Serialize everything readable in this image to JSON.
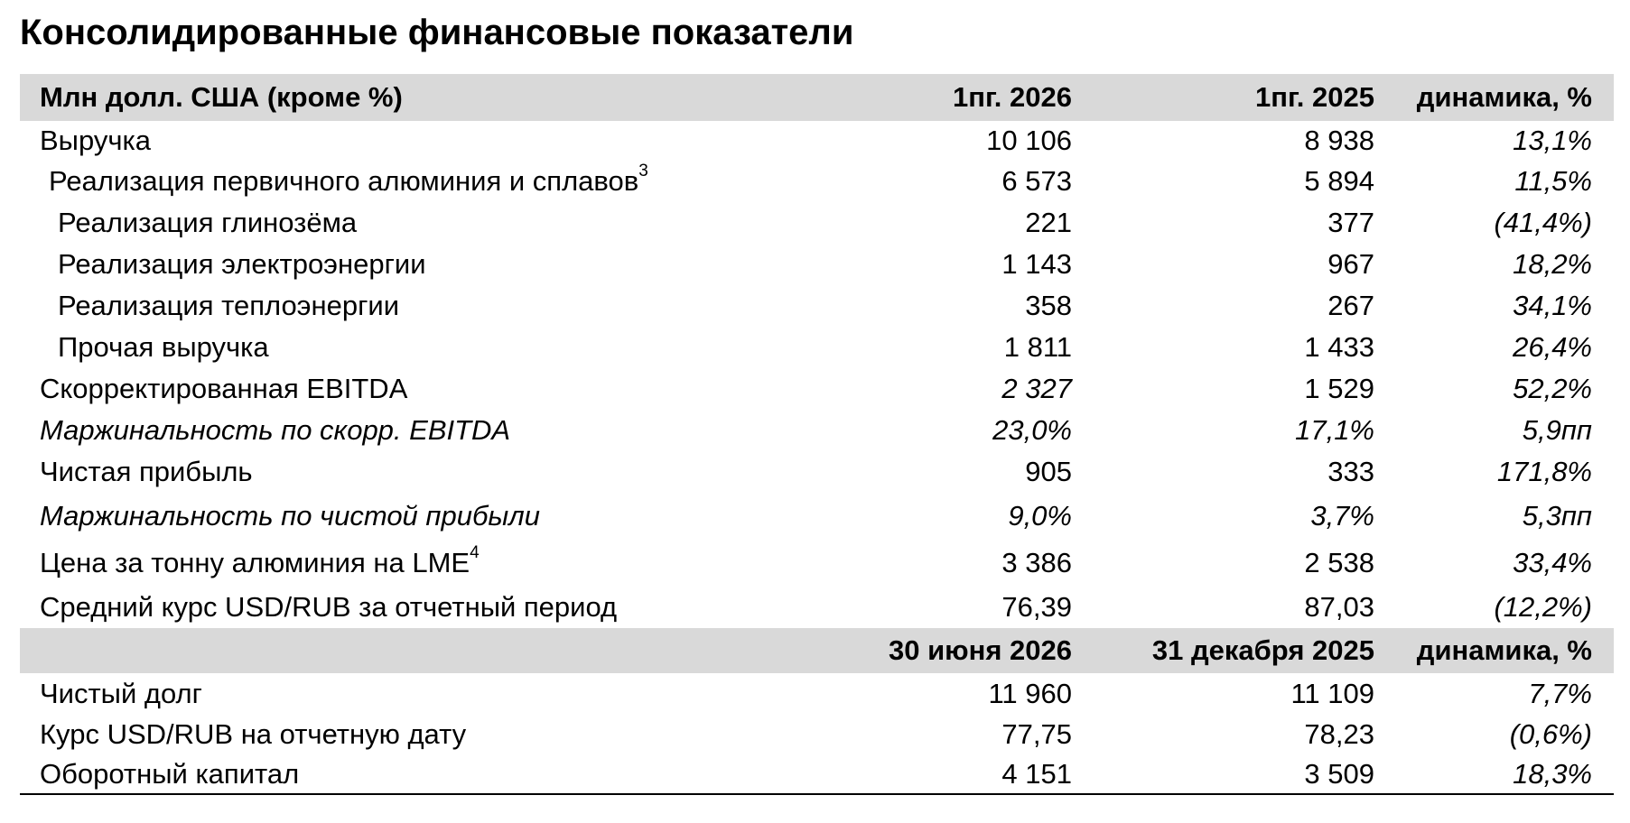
{
  "title": "Консолидированные финансовые показатели",
  "header1": {
    "label": "Млн долл. США (кроме %)",
    "col_a": "1пг. 2026",
    "col_b": "1пг. 2025",
    "col_c": "динамика, %"
  },
  "rows": [
    {
      "label": "Выручка",
      "sup": "",
      "a": "10 106",
      "b": "8 938",
      "c": "13,1%"
    },
    {
      "label": "Реализация первичного алюминия и сплавов",
      "sup": "3",
      "a": "6 573",
      "b": "5 894",
      "c": "11,5%"
    },
    {
      "label": "Реализация глинозёма",
      "sup": "",
      "a": "221",
      "b": "377",
      "c": "(41,4%)"
    },
    {
      "label": "Реализация электроэнергии",
      "sup": "",
      "a": "1 143",
      "b": "967",
      "c": "18,2%"
    },
    {
      "label": "Реализация теплоэнергии",
      "sup": "",
      "a": "358",
      "b": "267",
      "c": "34,1%"
    },
    {
      "label": "Прочая выручка",
      "sup": "",
      "a": "1 811",
      "b": "1 433",
      "c": "26,4%"
    },
    {
      "label": "Скорректированная EBITDA",
      "sup": "",
      "a": "2 327",
      "b": "1 529",
      "c": "52,2%"
    },
    {
      "label": "Маржинальность по скорр. EBITDA",
      "sup": "",
      "a": "23,0%",
      "b": "17,1%",
      "c": "5,9пп"
    },
    {
      "label": "Чистая прибыль",
      "sup": "",
      "a": "905",
      "b": "333",
      "c": "171,8%"
    },
    {
      "label": "Маржинальность по чистой прибыли",
      "sup": "",
      "a": "9,0%",
      "b": "3,7%",
      "c": "5,3пп"
    },
    {
      "label": "Цена за тонну алюминия на LME",
      "sup": "4",
      "a": "3 386",
      "b": "2 538",
      "c": "33,4%"
    },
    {
      "label": "Средний курс USD/RUB за отчетный период",
      "sup": "",
      "a": "76,39",
      "b": "87,03",
      "c": "(12,2%)"
    }
  ],
  "header2": {
    "label": "",
    "col_a": "30 июня 2026",
    "col_b": "31 декабря 2025",
    "col_c": "динамика, %"
  },
  "rows2": [
    {
      "label": "Чистый долг",
      "a": "11 960",
      "b": "11 109",
      "c": "7,7%"
    },
    {
      "label": "Курс USD/RUB на отчетную дату",
      "a": "77,75",
      "b": "78,23",
      "c": "(0,6%)"
    },
    {
      "label": "Оборотный капитал",
      "a": "4 151",
      "b": "3 509",
      "c": "18,3%"
    }
  ],
  "colors": {
    "header_background": "#d9d9d9",
    "text": "#000000",
    "rule": "#000000"
  }
}
